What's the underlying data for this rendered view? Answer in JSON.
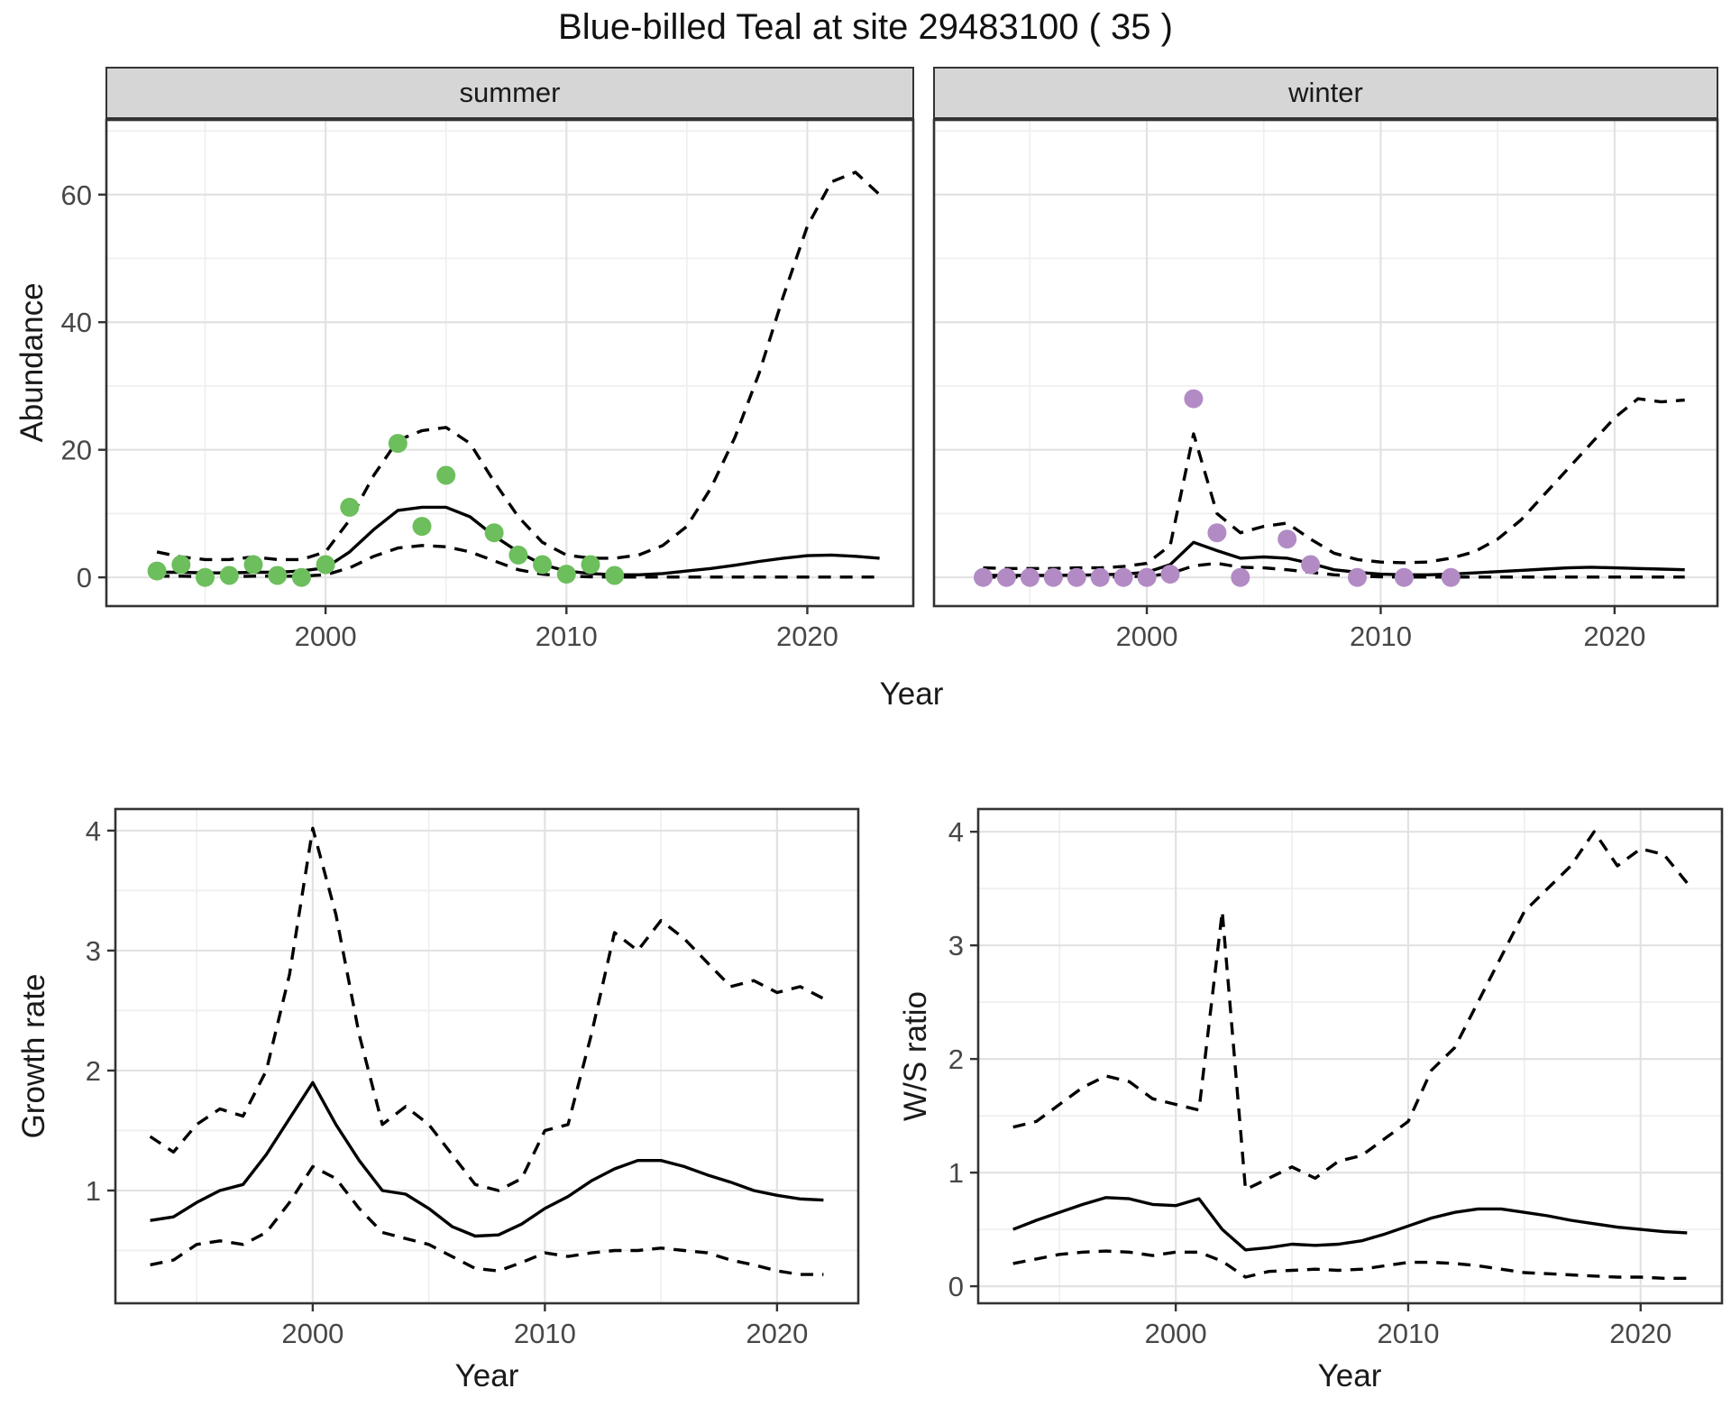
{
  "title": "Blue-billed Teal at site 29483100 ( 35 )",
  "facets": [
    {
      "label": "summer"
    },
    {
      "label": "winter"
    }
  ],
  "axis_titles": {
    "abundance": "Abundance",
    "year": "Year",
    "growth_rate": "Growth rate",
    "ws_ratio": "W/S ratio"
  },
  "colors": {
    "observed_summer": "#6dbe5c",
    "observed_winter": "#b28bc4",
    "line": "#000000",
    "strip_bg": "#d6d6d6",
    "panel_border": "#333333",
    "grid_major": "#e2e2e2",
    "grid_minor": "#eeeeee",
    "tick_label": "#474747"
  },
  "chart_data": [
    {
      "type": "line",
      "panel": "abundance-summer",
      "facet_label": "summer",
      "xlabel": "Year",
      "ylabel": "Abundance",
      "xlim": [
        1990.9,
        2024.4
      ],
      "ylim": [
        -4.5,
        71.7
      ],
      "x_ticks": [
        2000,
        2010,
        2020
      ],
      "y_ticks": [
        0,
        20,
        40,
        60
      ],
      "x_minor": [
        1995,
        2005,
        2015
      ],
      "y_minor": [
        10,
        30,
        50,
        70
      ],
      "x": [
        1993,
        1994,
        1995,
        1996,
        1997,
        1998,
        1999,
        2000,
        2001,
        2002,
        2003,
        2004,
        2005,
        2006,
        2007,
        2008,
        2009,
        2010,
        2011,
        2012,
        2013,
        2014,
        2015,
        2016,
        2017,
        2018,
        2019,
        2020,
        2021,
        2022,
        2023
      ],
      "series": [
        {
          "name": "fitted",
          "style": "solid",
          "values": [
            0.8,
            0.8,
            0.7,
            0.7,
            0.8,
            0.8,
            1.0,
            1.5,
            4.0,
            7.5,
            10.5,
            11.0,
            11.0,
            9.5,
            6.5,
            4.0,
            2.0,
            1.0,
            0.6,
            0.4,
            0.4,
            0.6,
            1.0,
            1.4,
            1.9,
            2.5,
            3.0,
            3.4,
            3.5,
            3.3,
            3.0
          ]
        },
        {
          "name": "upper-ci",
          "style": "dashed",
          "values": [
            4.0,
            3.2,
            2.8,
            2.8,
            3.2,
            2.8,
            2.8,
            4.0,
            9.0,
            16.0,
            21.5,
            23.0,
            23.5,
            21.0,
            15.0,
            9.5,
            5.5,
            3.5,
            3.0,
            3.0,
            3.5,
            5.0,
            8.0,
            14.0,
            22.0,
            32.0,
            44.0,
            55.0,
            62.0,
            63.5,
            60.0
          ]
        },
        {
          "name": "lower-ci",
          "style": "dashed",
          "values": [
            0.2,
            0.2,
            0.1,
            0.1,
            0.2,
            0.2,
            0.2,
            0.4,
            1.5,
            3.3,
            4.6,
            5.0,
            4.8,
            4.0,
            2.6,
            1.2,
            0.5,
            0.2,
            0.1,
            0.05,
            0.05,
            0.05,
            0.05,
            0.05,
            0.05,
            0.05,
            0.05,
            0.05,
            0.05,
            0.05,
            0.05
          ]
        }
      ],
      "points": {
        "name": "observed",
        "color": "#6dbe5c",
        "x": [
          1993,
          1994,
          1995,
          1996,
          1997,
          1998,
          1999,
          2000,
          2001,
          2003,
          2004,
          2005,
          2007,
          2008,
          2009,
          2010,
          2011,
          2012
        ],
        "y": [
          1,
          2,
          0,
          0.3,
          2,
          0.3,
          0,
          2,
          11,
          21,
          8,
          16,
          7,
          3.5,
          2,
          0.5,
          2,
          0.3
        ]
      }
    },
    {
      "type": "line",
      "panel": "abundance-winter",
      "facet_label": "winter",
      "xlabel": "Year",
      "ylabel": "Abundance",
      "xlim": [
        1990.9,
        2024.4
      ],
      "ylim": [
        -4.5,
        71.7
      ],
      "x_ticks": [
        2000,
        2010,
        2020
      ],
      "y_ticks": [
        0,
        20,
        40,
        60
      ],
      "x_minor": [
        1995,
        2005,
        2015
      ],
      "y_minor": [
        10,
        30,
        50,
        70
      ],
      "x": [
        1993,
        1994,
        1995,
        1996,
        1997,
        1998,
        1999,
        2000,
        2001,
        2002,
        2003,
        2004,
        2005,
        2006,
        2007,
        2008,
        2009,
        2010,
        2011,
        2012,
        2013,
        2014,
        2015,
        2016,
        2017,
        2018,
        2019,
        2020,
        2021,
        2022,
        2023
      ],
      "series": [
        {
          "name": "fitted",
          "style": "solid",
          "values": [
            0.3,
            0.3,
            0.3,
            0.3,
            0.35,
            0.4,
            0.5,
            0.8,
            2.0,
            5.5,
            4.2,
            3.0,
            3.2,
            3.0,
            2.2,
            1.2,
            0.8,
            0.5,
            0.4,
            0.4,
            0.5,
            0.7,
            0.9,
            1.1,
            1.3,
            1.5,
            1.6,
            1.5,
            1.4,
            1.3,
            1.2
          ]
        },
        {
          "name": "upper-ci",
          "style": "dashed",
          "values": [
            1.5,
            1.4,
            1.4,
            1.4,
            1.5,
            1.5,
            1.7,
            2.2,
            5.0,
            22.5,
            10.0,
            7.0,
            8.0,
            8.5,
            6.0,
            3.8,
            2.8,
            2.4,
            2.3,
            2.4,
            3.0,
            4.0,
            6.0,
            9.0,
            13.0,
            17.0,
            21.0,
            25.0,
            28.0,
            27.5,
            27.8
          ]
        },
        {
          "name": "lower-ci",
          "style": "dashed",
          "values": [
            0.05,
            0.05,
            0.05,
            0.05,
            0.05,
            0.05,
            0.1,
            0.2,
            0.6,
            1.8,
            2.2,
            1.6,
            1.5,
            1.2,
            0.8,
            0.4,
            0.2,
            0.1,
            0.05,
            0.05,
            0.05,
            0.05,
            0.05,
            0.05,
            0.05,
            0.05,
            0.05,
            0.05,
            0.05,
            0.05,
            0.05
          ]
        }
      ],
      "points": {
        "name": "observed",
        "color": "#b28bc4",
        "x": [
          1993,
          1994,
          1995,
          1996,
          1997,
          1998,
          1999,
          2000,
          2001,
          2002,
          2003,
          2004,
          2006,
          2007,
          2009,
          2011,
          2013
        ],
        "y": [
          0,
          0,
          0,
          0,
          0,
          0,
          0,
          0,
          0.5,
          28,
          7,
          0,
          6,
          2,
          0,
          0,
          0
        ]
      }
    },
    {
      "type": "line",
      "panel": "growth-rate",
      "xlabel": "Year",
      "ylabel": "Growth rate",
      "xlim": [
        1991.5,
        2023.5
      ],
      "ylim": [
        0.06,
        4.18
      ],
      "x_ticks": [
        2000,
        2010,
        2020
      ],
      "y_ticks": [
        1,
        2,
        3,
        4
      ],
      "x_minor": [
        1995,
        2005,
        2015
      ],
      "y_minor": [
        0.5,
        1.5,
        2.5,
        3.5
      ],
      "x": [
        1993,
        1994,
        1995,
        1996,
        1997,
        1998,
        1999,
        2000,
        2001,
        2002,
        2003,
        2004,
        2005,
        2006,
        2007,
        2008,
        2009,
        2010,
        2011,
        2012,
        2013,
        2014,
        2015,
        2016,
        2017,
        2018,
        2019,
        2020,
        2021,
        2022
      ],
      "series": [
        {
          "name": "fitted",
          "style": "solid",
          "values": [
            0.75,
            0.78,
            0.9,
            1.0,
            1.05,
            1.3,
            1.6,
            1.9,
            1.55,
            1.25,
            1.0,
            0.97,
            0.85,
            0.7,
            0.62,
            0.63,
            0.72,
            0.85,
            0.95,
            1.08,
            1.18,
            1.25,
            1.25,
            1.2,
            1.13,
            1.07,
            1.0,
            0.96,
            0.93,
            0.92
          ]
        },
        {
          "name": "upper-ci",
          "style": "dashed",
          "values": [
            1.45,
            1.32,
            1.55,
            1.68,
            1.62,
            2.0,
            2.8,
            4.02,
            3.3,
            2.3,
            1.55,
            1.7,
            1.55,
            1.3,
            1.05,
            1.0,
            1.1,
            1.5,
            1.55,
            2.3,
            3.15,
            3.0,
            3.25,
            3.1,
            2.9,
            2.7,
            2.75,
            2.65,
            2.7,
            2.6
          ]
        },
        {
          "name": "lower-ci",
          "style": "dashed",
          "values": [
            0.38,
            0.42,
            0.55,
            0.58,
            0.55,
            0.65,
            0.9,
            1.2,
            1.1,
            0.85,
            0.65,
            0.6,
            0.55,
            0.45,
            0.35,
            0.33,
            0.4,
            0.48,
            0.45,
            0.48,
            0.5,
            0.5,
            0.52,
            0.5,
            0.48,
            0.42,
            0.38,
            0.33,
            0.3,
            0.3
          ]
        }
      ]
    },
    {
      "type": "line",
      "panel": "ws-ratio",
      "xlabel": "Year",
      "ylabel": "W/S ratio",
      "xlim": [
        1991.5,
        2023.5
      ],
      "ylim": [
        -0.15,
        4.2
      ],
      "x_ticks": [
        2000,
        2010,
        2020
      ],
      "y_ticks": [
        0,
        1,
        2,
        3,
        4
      ],
      "x_minor": [
        1995,
        2005,
        2015
      ],
      "y_minor": [
        0.5,
        1.5,
        2.5,
        3.5
      ],
      "x": [
        1993,
        1994,
        1995,
        1996,
        1997,
        1998,
        1999,
        2000,
        2001,
        2002,
        2003,
        2004,
        2005,
        2006,
        2007,
        2008,
        2009,
        2010,
        2011,
        2012,
        2013,
        2014,
        2015,
        2016,
        2017,
        2018,
        2019,
        2020,
        2021,
        2022
      ],
      "series": [
        {
          "name": "fitted",
          "style": "solid",
          "values": [
            0.5,
            0.58,
            0.65,
            0.72,
            0.78,
            0.77,
            0.72,
            0.71,
            0.77,
            0.5,
            0.32,
            0.34,
            0.37,
            0.36,
            0.37,
            0.4,
            0.46,
            0.53,
            0.6,
            0.65,
            0.68,
            0.68,
            0.65,
            0.62,
            0.58,
            0.55,
            0.52,
            0.5,
            0.48,
            0.47
          ]
        },
        {
          "name": "upper-ci",
          "style": "dashed",
          "values": [
            1.4,
            1.45,
            1.6,
            1.75,
            1.85,
            1.8,
            1.65,
            1.6,
            1.55,
            3.3,
            0.85,
            0.95,
            1.05,
            0.95,
            1.1,
            1.15,
            1.3,
            1.45,
            1.9,
            2.1,
            2.5,
            2.9,
            3.3,
            3.5,
            3.7,
            4.0,
            3.7,
            3.85,
            3.8,
            3.55
          ]
        },
        {
          "name": "lower-ci",
          "style": "dashed",
          "values": [
            0.2,
            0.24,
            0.28,
            0.3,
            0.31,
            0.3,
            0.27,
            0.3,
            0.3,
            0.22,
            0.08,
            0.13,
            0.14,
            0.15,
            0.14,
            0.15,
            0.18,
            0.21,
            0.21,
            0.2,
            0.18,
            0.15,
            0.12,
            0.11,
            0.1,
            0.09,
            0.08,
            0.08,
            0.07,
            0.07
          ]
        }
      ]
    }
  ]
}
